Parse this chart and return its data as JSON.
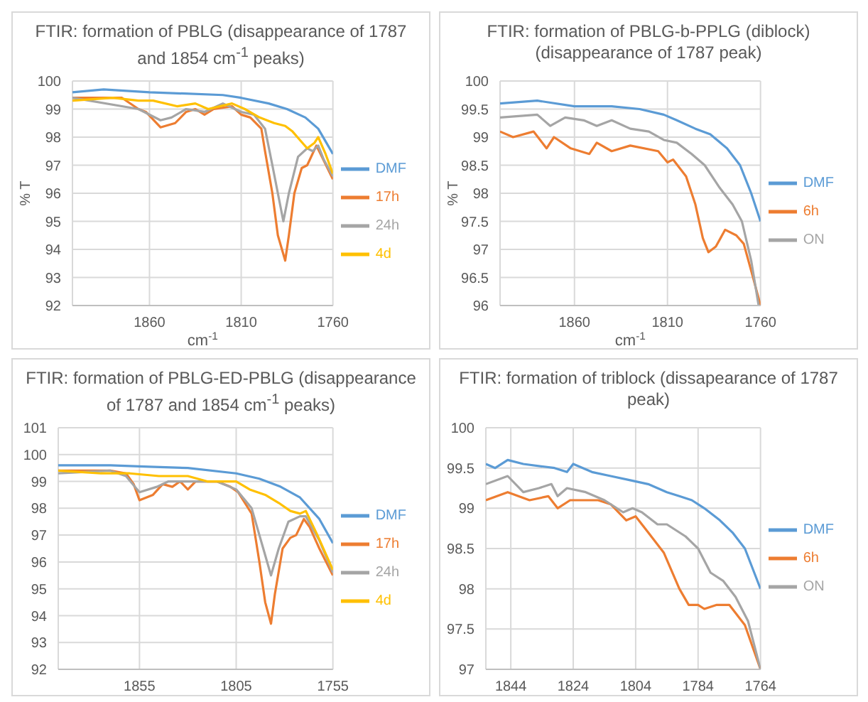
{
  "chart_data": [
    {
      "type": "line",
      "title": "FTIR: formation of PBLG (disappearance of 1787 and 1854 cm$^{-1}$ peaks)",
      "xlabel": "cm$^{-1}$",
      "ylabel": "% T",
      "xlim": [
        1902,
        1760
      ],
      "xticks": [
        1860,
        1810,
        1760
      ],
      "ylim": [
        92,
        100
      ],
      "yticks": [
        92,
        93,
        94,
        95,
        96,
        97,
        98,
        99,
        100
      ],
      "grid": true,
      "legend": "right",
      "marker": "none",
      "series": [
        {
          "name": "DMF",
          "color": "#5b9bd5",
          "x": [
            1902,
            1885,
            1860,
            1820,
            1810,
            1795,
            1785,
            1775,
            1768,
            1760
          ],
          "values": [
            99.6,
            99.7,
            99.6,
            99.5,
            99.4,
            99.2,
            99.0,
            98.7,
            98.3,
            97.4
          ]
        },
        {
          "name": "17h",
          "color": "#ed7d31",
          "x": [
            1902,
            1875,
            1866,
            1862,
            1854,
            1846,
            1840,
            1835,
            1830,
            1825,
            1815,
            1810,
            1805,
            1799,
            1797,
            1793,
            1790,
            1786,
            1784,
            1781,
            1777,
            1774,
            1769,
            1766,
            1760
          ],
          "values": [
            99.4,
            99.4,
            99.0,
            98.9,
            98.35,
            98.5,
            98.9,
            99.0,
            98.8,
            99.0,
            99.1,
            98.8,
            98.7,
            98.3,
            97.5,
            96.0,
            94.5,
            93.6,
            94.5,
            96.0,
            96.9,
            97.0,
            97.7,
            97.3,
            96.5
          ]
        },
        {
          "name": "24h",
          "color": "#a5a5a5",
          "x": [
            1902,
            1866,
            1854,
            1848,
            1840,
            1830,
            1820,
            1810,
            1803,
            1797,
            1793,
            1787,
            1784,
            1779,
            1774,
            1771,
            1768,
            1765,
            1760
          ],
          "values": [
            99.4,
            99.0,
            98.6,
            98.7,
            99.0,
            98.9,
            99.2,
            98.9,
            98.8,
            98.3,
            97.0,
            95.0,
            96.0,
            97.3,
            97.6,
            97.5,
            97.7,
            97.2,
            96.6
          ]
        },
        {
          "name": "4d",
          "color": "#ffc000",
          "x": [
            1902,
            1880,
            1866,
            1858,
            1845,
            1835,
            1828,
            1815,
            1808,
            1800,
            1792,
            1786,
            1782,
            1778,
            1774,
            1770,
            1768,
            1764,
            1760
          ],
          "values": [
            99.3,
            99.4,
            99.3,
            99.3,
            99.1,
            99.2,
            99.0,
            99.2,
            99.0,
            98.7,
            98.5,
            98.4,
            98.2,
            97.9,
            97.6,
            97.8,
            98.0,
            97.4,
            96.7
          ]
        }
      ]
    },
    {
      "type": "line",
      "title": "FTIR: formation of PBLG-b-PPLG (diblock) (disappearance of 1787 peak)",
      "xlabel": "cm$^{-1}$",
      "ylabel": "% T",
      "xlim": [
        1900,
        1760
      ],
      "xticks": [
        1860,
        1810,
        1760
      ],
      "ylim": [
        96,
        100
      ],
      "yticks": [
        96,
        96.5,
        97,
        97.5,
        98,
        98.5,
        99,
        99.5,
        100
      ],
      "grid": true,
      "legend": "right",
      "marker": "none",
      "series": [
        {
          "name": "DMF",
          "color": "#5b9bd5",
          "x": [
            1900,
            1880,
            1860,
            1840,
            1825,
            1812,
            1805,
            1795,
            1787,
            1778,
            1771,
            1765,
            1760
          ],
          "values": [
            99.6,
            99.65,
            99.55,
            99.55,
            99.5,
            99.4,
            99.3,
            99.15,
            99.05,
            98.8,
            98.5,
            98.0,
            97.5
          ]
        },
        {
          "name": "6h",
          "color": "#ed7d31",
          "x": [
            1900,
            1893,
            1882,
            1875,
            1871,
            1862,
            1852,
            1848,
            1840,
            1830,
            1815,
            1810,
            1807,
            1800,
            1795,
            1791,
            1788,
            1784,
            1779,
            1773,
            1769,
            1764,
            1760
          ],
          "values": [
            99.1,
            99.0,
            99.1,
            98.8,
            99.0,
            98.8,
            98.7,
            98.9,
            98.75,
            98.85,
            98.75,
            98.55,
            98.6,
            98.3,
            97.8,
            97.2,
            96.95,
            97.05,
            97.35,
            97.25,
            97.1,
            96.5,
            96.0
          ]
        },
        {
          "name": "ON",
          "color": "#a5a5a5",
          "x": [
            1900,
            1880,
            1873,
            1865,
            1855,
            1848,
            1840,
            1830,
            1820,
            1812,
            1805,
            1797,
            1790,
            1782,
            1775,
            1770,
            1765,
            1761
          ],
          "values": [
            99.35,
            99.4,
            99.2,
            99.35,
            99.3,
            99.2,
            99.3,
            99.15,
            99.1,
            98.95,
            98.9,
            98.7,
            98.5,
            98.1,
            97.8,
            97.5,
            96.8,
            96.0
          ]
        }
      ]
    },
    {
      "type": "line",
      "title": "FTIR: formation of PBLG-ED-PBLG (disappearance of 1787 and 1854 cm$^{-1}$ peaks)",
      "xlim": [
        1897,
        1755
      ],
      "xticks": [
        1855,
        1805,
        1755
      ],
      "ylim": [
        92,
        101
      ],
      "yticks": [
        92,
        93,
        94,
        95,
        96,
        97,
        98,
        99,
        100,
        101
      ],
      "grid": true,
      "legend": "right",
      "marker": "none",
      "series": [
        {
          "name": "DMF",
          "color": "#5b9bd5",
          "x": [
            1897,
            1870,
            1850,
            1830,
            1805,
            1793,
            1782,
            1772,
            1762,
            1755
          ],
          "values": [
            99.6,
            99.6,
            99.55,
            99.5,
            99.3,
            99.1,
            98.8,
            98.4,
            97.6,
            96.7
          ]
        },
        {
          "name": "17h",
          "color": "#ed7d31",
          "x": [
            1897,
            1870,
            1862,
            1858,
            1855,
            1848,
            1843,
            1838,
            1834,
            1830,
            1826,
            1815,
            1808,
            1804,
            1797,
            1793,
            1790,
            1787,
            1785,
            1781,
            1777,
            1774,
            1770,
            1767,
            1762,
            1755
          ],
          "values": [
            99.4,
            99.4,
            99.3,
            98.9,
            98.3,
            98.5,
            98.9,
            98.8,
            99.0,
            98.7,
            99.0,
            99.0,
            98.8,
            98.6,
            97.8,
            96.0,
            94.5,
            93.7,
            94.8,
            96.5,
            96.9,
            97.0,
            97.6,
            97.3,
            96.5,
            95.5
          ]
        },
        {
          "name": "24h",
          "color": "#a5a5a5",
          "x": [
            1897,
            1870,
            1862,
            1855,
            1846,
            1840,
            1815,
            1805,
            1797,
            1791,
            1787,
            1783,
            1778,
            1772,
            1769,
            1762,
            1755
          ],
          "values": [
            99.3,
            99.4,
            99.2,
            98.6,
            98.8,
            99.0,
            99.0,
            98.7,
            98.0,
            96.5,
            95.5,
            96.5,
            97.5,
            97.7,
            97.7,
            96.8,
            95.6
          ]
        },
        {
          "name": "4d",
          "color": "#ffc000",
          "x": [
            1897,
            1875,
            1860,
            1845,
            1830,
            1820,
            1805,
            1798,
            1790,
            1783,
            1777,
            1772,
            1769,
            1763,
            1755
          ],
          "values": [
            99.4,
            99.3,
            99.3,
            99.2,
            99.2,
            99.0,
            99.0,
            98.7,
            98.5,
            98.2,
            97.9,
            97.8,
            97.9,
            97.0,
            95.7
          ]
        }
      ]
    },
    {
      "type": "line",
      "title": "FTIR: formation of triblock (dissapearance of 1787 peak)",
      "xlim": [
        1852,
        1764
      ],
      "xticks": [
        1844,
        1824,
        1804,
        1784,
        1764
      ],
      "ylim": [
        97,
        100
      ],
      "yticks": [
        97,
        97.5,
        98,
        98.5,
        99,
        99.5,
        100
      ],
      "grid": true,
      "legend": "right",
      "marker": "none",
      "series": [
        {
          "name": "DMF",
          "color": "#5b9bd5",
          "x": [
            1852,
            1849,
            1845,
            1840,
            1830,
            1826,
            1824,
            1818,
            1812,
            1806,
            1800,
            1794,
            1790,
            1786,
            1782,
            1777,
            1773,
            1769,
            1764
          ],
          "values": [
            99.55,
            99.5,
            99.6,
            99.55,
            99.5,
            99.45,
            99.55,
            99.45,
            99.4,
            99.35,
            99.3,
            99.2,
            99.15,
            99.1,
            99.0,
            98.85,
            98.7,
            98.5,
            98.0
          ]
        },
        {
          "name": "6h",
          "color": "#ed7d31",
          "x": [
            1852,
            1845,
            1838,
            1832,
            1829,
            1825,
            1816,
            1812,
            1807,
            1804,
            1800,
            1795,
            1790,
            1787,
            1784,
            1782,
            1778,
            1774,
            1769,
            1764
          ],
          "values": [
            99.1,
            99.2,
            99.1,
            99.15,
            99.0,
            99.1,
            99.1,
            99.05,
            98.85,
            98.9,
            98.7,
            98.45,
            98.0,
            97.8,
            97.8,
            97.75,
            97.8,
            97.8,
            97.55,
            97.0
          ]
        },
        {
          "name": "ON",
          "color": "#a5a5a5",
          "x": [
            1852,
            1845,
            1840,
            1835,
            1831,
            1829,
            1826,
            1820,
            1814,
            1808,
            1805,
            1802,
            1797,
            1794,
            1788,
            1784,
            1780,
            1776,
            1772,
            1768,
            1764
          ],
          "values": [
            99.3,
            99.4,
            99.2,
            99.25,
            99.3,
            99.15,
            99.25,
            99.2,
            99.1,
            98.95,
            99.0,
            98.95,
            98.8,
            98.8,
            98.65,
            98.5,
            98.2,
            98.1,
            97.9,
            97.6,
            97.0
          ]
        }
      ]
    }
  ]
}
